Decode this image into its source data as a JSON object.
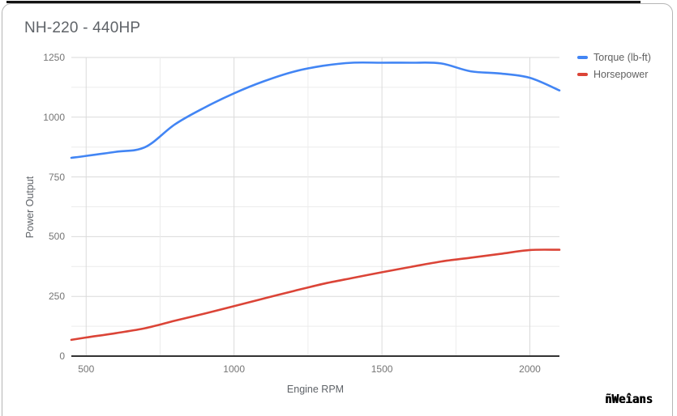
{
  "chart_data": {
    "type": "line",
    "title": "NH-220 - 440HP",
    "xlabel": "Engine RPM",
    "ylabel": "Power Output",
    "x": [
      450,
      500,
      600,
      700,
      800,
      900,
      1000,
      1100,
      1200,
      1300,
      1400,
      1500,
      1600,
      1700,
      1800,
      1900,
      2000,
      2100
    ],
    "series": [
      {
        "name": "Torque (lb-ft)",
        "color": "#4285f4",
        "values": [
          830,
          838,
          855,
          875,
          970,
          1040,
          1100,
          1150,
          1190,
          1215,
          1228,
          1228,
          1228,
          1225,
          1192,
          1183,
          1165,
          1112
        ]
      },
      {
        "name": "Horsepower",
        "color": "#db4437",
        "values": [
          68,
          78,
          96,
          117,
          148,
          178,
          209,
          241,
          272,
          302,
          327,
          351,
          374,
          396,
          412,
          428,
          444,
          445
        ]
      }
    ],
    "xlim": [
      450,
      2100
    ],
    "ylim": [
      0,
      1250
    ],
    "x_ticks": [
      500,
      1000,
      1500,
      2000
    ],
    "y_ticks": [
      1250,
      1000,
      750,
      500,
      250,
      0
    ],
    "grid": {
      "on": true,
      "x_step": 250,
      "y_step": 125
    },
    "legend_position": "right"
  },
  "watermark": "ñWeîans"
}
